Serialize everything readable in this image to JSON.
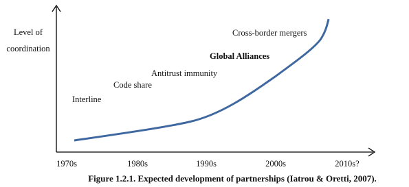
{
  "y_axis_label": [
    "Level of",
    "coordination"
  ],
  "x_axis_labels": [
    "1970s",
    "1980s",
    "1990s",
    "2000s",
    "2010s?"
  ],
  "stages": [
    "Interline",
    "Code share",
    "Antitrust immunity",
    "Global Alliances",
    "Cross-border mergers"
  ],
  "caption": "Figure 1.2.1. Expected development of partnerships (Iatrou & Oretti, 2007)."
}
